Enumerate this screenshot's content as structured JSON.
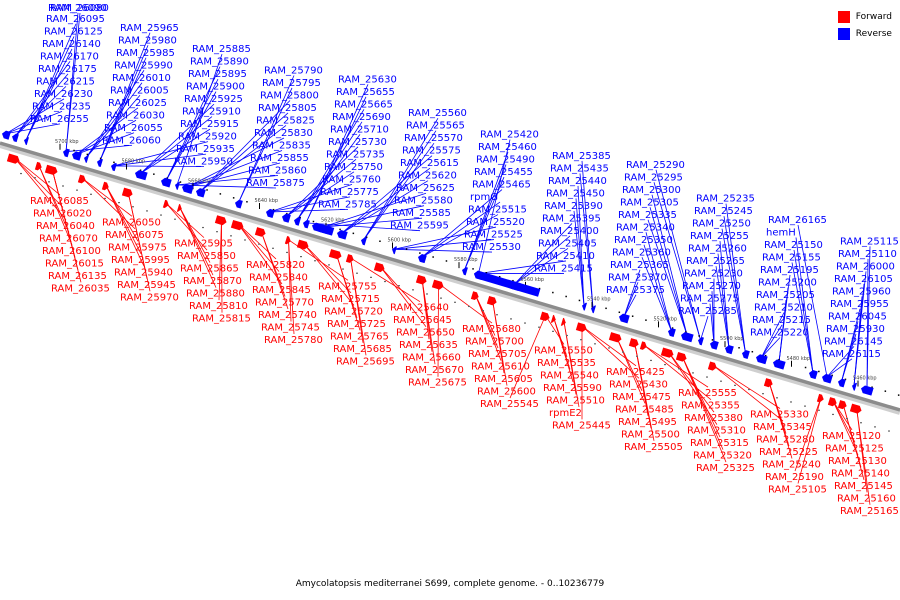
{
  "caption": "Amycolatopsis mediterranei S699, complete genome. - 0..10236779",
  "legend": [
    {
      "label": "Forward",
      "color": "#ff0000"
    },
    {
      "label": "Reverse",
      "color": "#0000ff"
    }
  ],
  "colors": {
    "forward": "#ff0000",
    "reverse": "#0000ff",
    "backbone": "#8c8c8c"
  },
  "scale_ticks": [
    "5700 kbp",
    "5680 kbp",
    "5660 kbp",
    "5640 kbp",
    "5620 kbp",
    "5600 kbp",
    "5580 kbp",
    "5560 kbp",
    "5540 kbp",
    "5520 kbp",
    "5500 kbp",
    "5480 kbp",
    "5460 kbp"
  ],
  "reverse_labels": [
    "RAM_26255",
    "RAM_26235",
    "RAM_26230",
    "RAM_26215",
    "RAM_26175",
    "RAM_26170",
    "RAM_26140",
    "RAM_26125",
    "RAM_26095",
    "RAM_26090",
    "RAM_26080",
    "RAM_26060",
    "RAM_26055",
    "RAM_26030",
    "RAM_26025",
    "RAM_26005",
    "RAM_26010",
    "RAM_25990",
    "RAM_25985",
    "RAM_25980",
    "RAM_25965",
    "RAM_25950",
    "RAM_25935",
    "RAM_25920",
    "RAM_25915",
    "RAM_25910",
    "RAM_25925",
    "RAM_25900",
    "RAM_25895",
    "RAM_25890",
    "RAM_25885",
    "RAM_25875",
    "RAM_25860",
    "RAM_25855",
    "RAM_25835",
    "RAM_25830",
    "RAM_25825",
    "RAM_25805",
    "RAM_25800",
    "RAM_25795",
    "RAM_25790",
    "RAM_25785",
    "RAM_25775",
    "RAM_25760",
    "RAM_25750",
    "RAM_25735",
    "RAM_25730",
    "RAM_25710",
    "RAM_25690",
    "RAM_25665",
    "RAM_25655",
    "RAM_25630",
    "RAM_25595",
    "RAM_25585",
    "RAM_25580",
    "RAM_25625",
    "RAM_25620",
    "RAM_25615",
    "RAM_25575",
    "RAM_25570",
    "RAM_25565",
    "RAM_25560",
    "RAM_25530",
    "RAM_25525",
    "RAM_25520",
    "RAM_25515",
    "rpmG",
    "RAM_25465",
    "RAM_25455",
    "RAM_25490",
    "RAM_25460",
    "RAM_25420",
    "RAM_25415",
    "RAM_25410",
    "RAM_25405",
    "RAM_25400",
    "RAM_25395",
    "RAM_25390",
    "RAM_25450",
    "RAM_25440",
    "RAM_25435",
    "RAM_25385",
    "RAM_25375",
    "RAM_25370",
    "RAM_25365",
    "RAM_25360",
    "RAM_25350",
    "RAM_25340",
    "RAM_25335",
    "RAM_25305",
    "RAM_25300",
    "RAM_25295",
    "RAM_25290",
    "RAM_25285",
    "RAM_25275",
    "RAM_25270",
    "RAM_25230",
    "RAM_25265",
    "RAM_25260",
    "RAM_25255",
    "RAM_25250",
    "RAM_25245",
    "RAM_25235",
    "RAM_25220",
    "RAM_25215",
    "RAM_25210",
    "RAM_25205",
    "RAM_25200",
    "RAM_25195",
    "RAM_25155",
    "RAM_25150",
    "hemH",
    "RAM_26165",
    "RAM_26115",
    "RAM_26145",
    "RAM_25930",
    "RAM_26045",
    "RAM_25955",
    "RAM_25960",
    "RAM_26105",
    "RAM_26000",
    "RAM_25110",
    "RAM_25115"
  ],
  "forward_labels": [
    "RAM_26085",
    "RAM_26020",
    "RAM_26040",
    "RAM_26070",
    "RAM_26100",
    "RAM_26015",
    "RAM_26135",
    "RAM_26035",
    "RAM_26050",
    "RAM_26075",
    "RAM_25975",
    "RAM_25995",
    "RAM_25940",
    "RAM_25945",
    "RAM_25970",
    "RAM_25905",
    "RAM_25850",
    "RAM_25865",
    "RAM_25870",
    "RAM_25880",
    "RAM_25810",
    "RAM_25815",
    "RAM_25820",
    "RAM_25840",
    "RAM_25845",
    "RAM_25770",
    "RAM_25740",
    "RAM_25745",
    "RAM_25780",
    "RAM_25755",
    "RAM_25715",
    "RAM_25720",
    "RAM_25725",
    "RAM_25765",
    "RAM_25685",
    "RAM_25695",
    "RAM_25640",
    "RAM_25645",
    "RAM_25650",
    "RAM_25635",
    "RAM_25660",
    "RAM_25670",
    "RAM_25675",
    "RAM_25680",
    "RAM_25700",
    "RAM_25705",
    "RAM_25610",
    "RAM_25605",
    "RAM_25600",
    "RAM_25545",
    "RAM_25550",
    "RAM_25535",
    "RAM_25540",
    "RAM_25590",
    "RAM_25510",
    "rpmE2",
    "RAM_25445",
    "RAM_25425",
    "RAM_25430",
    "RAM_25475",
    "RAM_25485",
    "RAM_25495",
    "RAM_25500",
    "RAM_25505",
    "RAM_25555",
    "RAM_25355",
    "RAM_25380",
    "RAM_25310",
    "RAM_25315",
    "RAM_25320",
    "RAM_25325",
    "RAM_25330",
    "RAM_25345",
    "RAM_25280",
    "RAM_25225",
    "RAM_25240",
    "RAM_25190",
    "RAM_25105",
    "RAM_25120",
    "RAM_25125",
    "RAM_25130",
    "RAM_25140",
    "RAM_25145",
    "RAM_25160",
    "RAM_25165"
  ]
}
